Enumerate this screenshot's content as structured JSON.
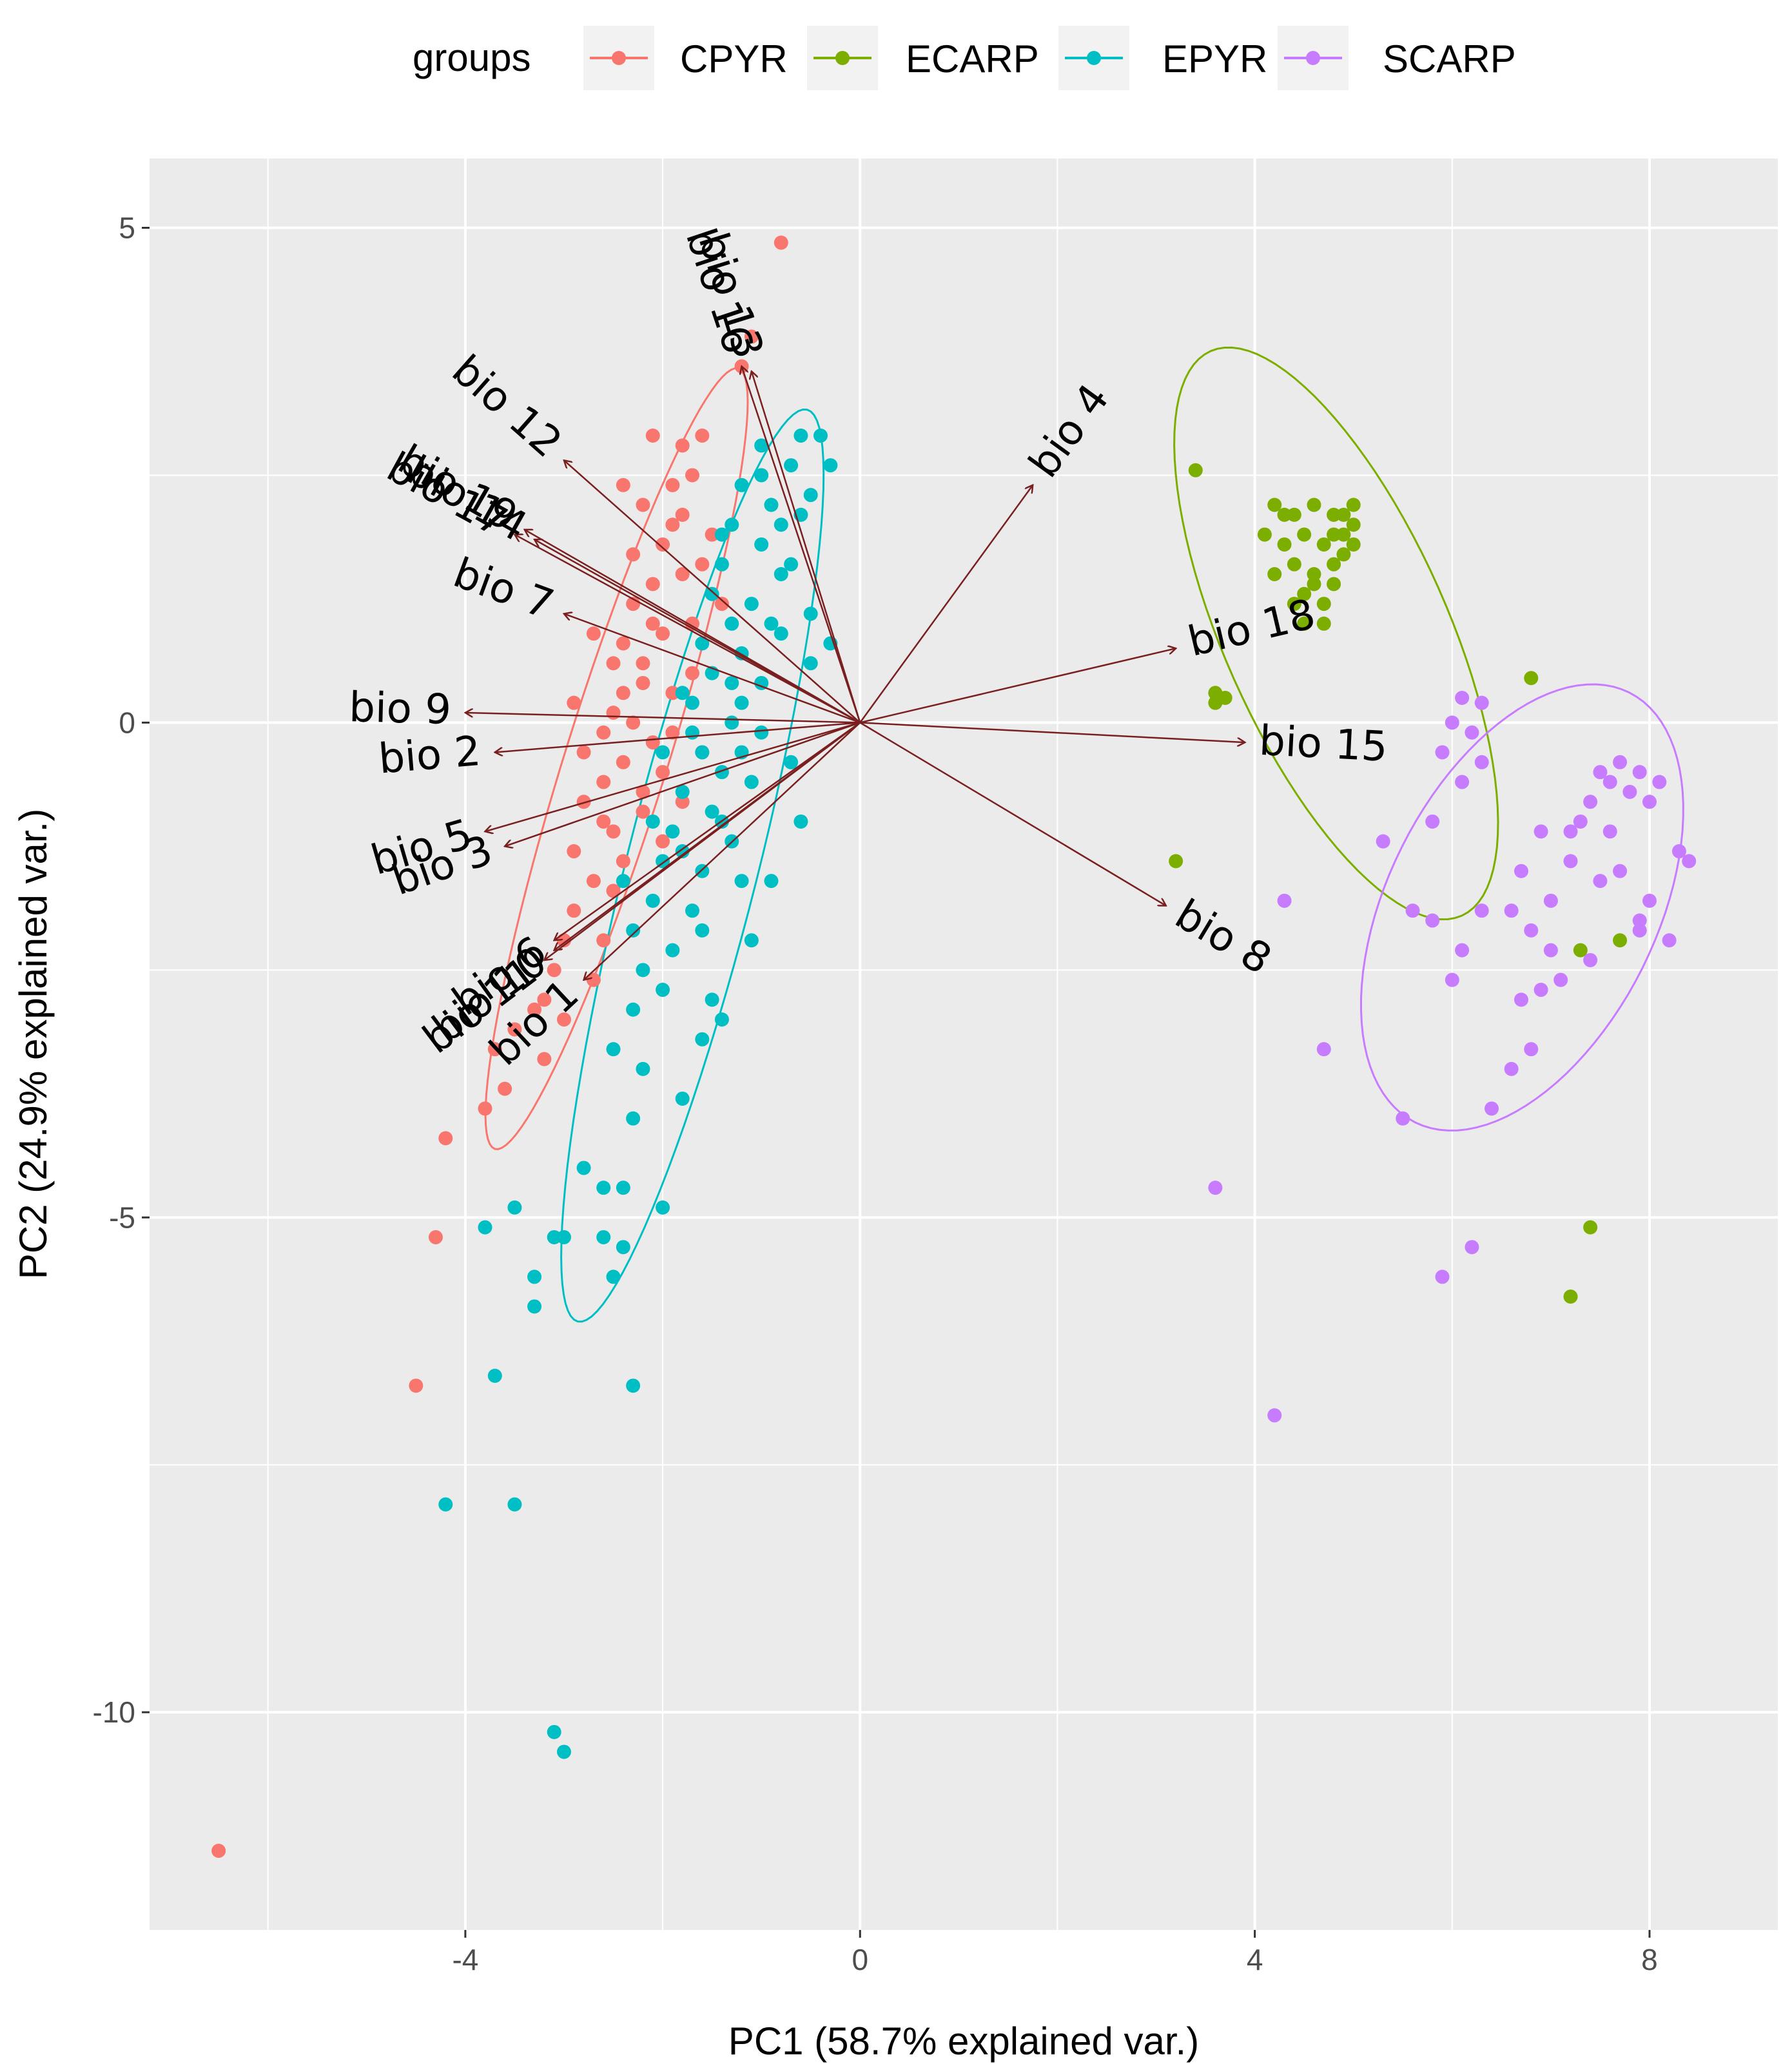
{
  "chart_data": {
    "type": "scatter",
    "title": "",
    "xlabel": "PC1 (58.7% explained var.)",
    "ylabel": "PC2 (24.9% explained var.)",
    "xlim": [
      -7.2,
      9.3
    ],
    "ylim": [
      -12.2,
      5.7
    ],
    "x_ticks": [
      -4,
      0,
      4,
      8
    ],
    "y_ticks": [
      -10,
      -5,
      0,
      5
    ],
    "grid": true,
    "legend": {
      "title": "groups",
      "position": "top"
    },
    "colors": {
      "CPYR": "#F8766D",
      "ECARP": "#7CAE00",
      "EPYR": "#00BFC4",
      "SCARP": "#C77CFF",
      "arrow": "#7a1f1f",
      "panel": "#ebebeb",
      "grid": "#ffffff"
    },
    "series": [
      {
        "name": "CPYR",
        "points": [
          [
            -0.8,
            4.85
          ],
          [
            -1.1,
            3.9
          ],
          [
            -1.2,
            3.6
          ],
          [
            -1.6,
            2.9
          ],
          [
            -1.8,
            2.8
          ],
          [
            -2.1,
            2.9
          ],
          [
            -1.7,
            2.5
          ],
          [
            -2.4,
            2.4
          ],
          [
            -2.2,
            2.2
          ],
          [
            -1.9,
            2.4
          ],
          [
            -2.0,
            1.8
          ],
          [
            -2.3,
            1.7
          ],
          [
            -2.1,
            1.4
          ],
          [
            -1.8,
            1.5
          ],
          [
            -1.7,
            1.0
          ],
          [
            -2.0,
            0.9
          ],
          [
            -2.2,
            0.6
          ],
          [
            -2.5,
            0.6
          ],
          [
            -2.4,
            0.3
          ],
          [
            -2.3,
            0.0
          ],
          [
            -2.6,
            -0.1
          ],
          [
            -2.1,
            -0.2
          ],
          [
            -2.4,
            -0.4
          ],
          [
            -2.0,
            -0.5
          ],
          [
            -2.6,
            -0.6
          ],
          [
            -2.8,
            -0.8
          ],
          [
            -2.2,
            -0.9
          ],
          [
            -2.5,
            -1.1
          ],
          [
            -2.9,
            -1.3
          ],
          [
            -2.7,
            -1.6
          ],
          [
            -2.5,
            -1.7
          ],
          [
            -2.9,
            -1.9
          ],
          [
            -3.0,
            -2.2
          ],
          [
            -3.1,
            -2.5
          ],
          [
            -2.7,
            -2.6
          ],
          [
            -3.2,
            -2.8
          ],
          [
            -3.3,
            -2.9
          ],
          [
            -3.0,
            -3.0
          ],
          [
            -3.5,
            -3.1
          ],
          [
            -3.7,
            -3.3
          ],
          [
            -3.2,
            -3.4
          ],
          [
            -3.8,
            -3.9
          ],
          [
            -4.2,
            -4.2
          ],
          [
            -3.6,
            -3.7
          ],
          [
            -4.3,
            -5.2
          ],
          [
            -4.5,
            -6.7
          ],
          [
            -6.5,
            -11.4
          ],
          [
            -1.5,
            1.9
          ],
          [
            -1.4,
            1.2
          ],
          [
            -1.9,
            0.3
          ],
          [
            -1.6,
            -0.3
          ],
          [
            -2.9,
            0.2
          ],
          [
            -2.7,
            0.9
          ],
          [
            -2.3,
            1.2
          ],
          [
            -1.9,
            2.0
          ],
          [
            -2.0,
            -1.2
          ],
          [
            -2.6,
            -2.2
          ],
          [
            -1.8,
            -0.8
          ],
          [
            -2.4,
            -1.4
          ],
          [
            -2.2,
            0.4
          ],
          [
            -1.7,
            0.5
          ],
          [
            -2.6,
            -1.0
          ],
          [
            -2.8,
            -0.3
          ],
          [
            -1.9,
            -0.1
          ],
          [
            -2.1,
            1.0
          ],
          [
            -2.4,
            0.8
          ],
          [
            -1.6,
            1.6
          ],
          [
            -1.8,
            2.1
          ],
          [
            -2.2,
            -0.7
          ],
          [
            -2.5,
            0.1
          ]
        ]
      },
      {
        "name": "ECARP",
        "points": [
          [
            3.4,
            2.55
          ],
          [
            4.2,
            2.2
          ],
          [
            4.4,
            2.1
          ],
          [
            4.6,
            2.2
          ],
          [
            4.8,
            2.1
          ],
          [
            5.0,
            2.2
          ],
          [
            4.5,
            1.9
          ],
          [
            4.7,
            1.8
          ],
          [
            4.9,
            1.9
          ],
          [
            5.0,
            2.0
          ],
          [
            4.3,
            1.8
          ],
          [
            4.1,
            1.9
          ],
          [
            4.4,
            1.6
          ],
          [
            4.6,
            1.5
          ],
          [
            4.8,
            1.6
          ],
          [
            4.9,
            1.7
          ],
          [
            4.5,
            1.3
          ],
          [
            4.7,
            1.2
          ],
          [
            4.6,
            1.4
          ],
          [
            4.8,
            1.4
          ],
          [
            4.4,
            1.2
          ],
          [
            4.2,
            1.5
          ],
          [
            5.0,
            1.8
          ],
          [
            4.7,
            1.0
          ],
          [
            4.5,
            1.0
          ],
          [
            4.9,
            2.1
          ],
          [
            4.3,
            2.1
          ],
          [
            4.8,
            1.9
          ],
          [
            3.6,
            0.3
          ],
          [
            3.7,
            0.25
          ],
          [
            3.6,
            0.2
          ],
          [
            6.8,
            0.45
          ],
          [
            3.2,
            -1.4
          ],
          [
            7.3,
            -2.3
          ],
          [
            7.7,
            -2.2
          ],
          [
            7.4,
            -5.1
          ],
          [
            7.2,
            -5.8
          ]
        ]
      },
      {
        "name": "EPYR",
        "points": [
          [
            -0.6,
            2.9
          ],
          [
            -0.7,
            2.6
          ],
          [
            -1.0,
            2.5
          ],
          [
            -1.2,
            2.4
          ],
          [
            -0.9,
            2.2
          ],
          [
            -0.5,
            2.3
          ],
          [
            -0.6,
            2.1
          ],
          [
            -1.3,
            2.0
          ],
          [
            -1.0,
            1.8
          ],
          [
            -1.4,
            1.6
          ],
          [
            -0.8,
            1.5
          ],
          [
            -1.5,
            1.3
          ],
          [
            -1.1,
            1.2
          ],
          [
            -1.3,
            1.0
          ],
          [
            -0.8,
            0.9
          ],
          [
            -1.6,
            0.8
          ],
          [
            -1.2,
            0.7
          ],
          [
            -1.5,
            0.5
          ],
          [
            -1.0,
            0.4
          ],
          [
            -1.7,
            0.2
          ],
          [
            -1.3,
            0.0
          ],
          [
            -1.0,
            -0.1
          ],
          [
            -1.6,
            -0.3
          ],
          [
            -1.4,
            -0.5
          ],
          [
            -1.1,
            -0.6
          ],
          [
            -1.8,
            -0.7
          ],
          [
            -1.5,
            -0.9
          ],
          [
            -1.9,
            -1.1
          ],
          [
            -1.3,
            -1.2
          ],
          [
            -2.0,
            -1.4
          ],
          [
            -1.6,
            -1.5
          ],
          [
            -1.2,
            -1.6
          ],
          [
            -2.1,
            -1.8
          ],
          [
            -1.7,
            -1.9
          ],
          [
            -2.3,
            -2.1
          ],
          [
            -1.9,
            -2.3
          ],
          [
            -2.2,
            -2.5
          ],
          [
            -2.0,
            -2.7
          ],
          [
            -1.5,
            -2.8
          ],
          [
            -1.4,
            -3.0
          ],
          [
            -1.6,
            -3.2
          ],
          [
            -2.3,
            -2.9
          ],
          [
            -2.5,
            -3.3
          ],
          [
            -2.2,
            -3.5
          ],
          [
            -1.8,
            -3.8
          ],
          [
            -2.3,
            -4.0
          ],
          [
            -2.8,
            -4.5
          ],
          [
            -2.6,
            -4.7
          ],
          [
            -2.4,
            -4.7
          ],
          [
            -2.0,
            -4.9
          ],
          [
            -2.6,
            -5.2
          ],
          [
            -2.4,
            -5.3
          ],
          [
            -2.5,
            -5.6
          ],
          [
            -3.0,
            -5.2
          ],
          [
            -3.1,
            -5.2
          ],
          [
            -3.3,
            -5.6
          ],
          [
            -3.3,
            -5.9
          ],
          [
            -3.5,
            -4.9
          ],
          [
            -3.8,
            -5.1
          ],
          [
            -3.7,
            -6.6
          ],
          [
            -2.3,
            -6.7
          ],
          [
            -4.2,
            -7.9
          ],
          [
            -3.5,
            -7.9
          ],
          [
            -3.1,
            -10.2
          ],
          [
            -3.0,
            -10.4
          ],
          [
            -0.3,
            2.6
          ],
          [
            -0.4,
            2.9
          ],
          [
            -0.7,
            1.6
          ],
          [
            -0.9,
            1.0
          ],
          [
            -0.5,
            1.1
          ],
          [
            -1.2,
            0.2
          ],
          [
            -1.7,
            -0.1
          ],
          [
            -2.1,
            -1.0
          ],
          [
            -1.8,
            -1.3
          ],
          [
            -2.4,
            -1.6
          ],
          [
            -1.1,
            -2.2
          ],
          [
            -0.9,
            -1.6
          ],
          [
            -0.6,
            -1.0
          ],
          [
            -0.7,
            -0.4
          ],
          [
            -0.5,
            0.6
          ],
          [
            -0.3,
            0.8
          ],
          [
            -1.4,
            1.9
          ],
          [
            -1.0,
            2.8
          ],
          [
            -0.8,
            2.0
          ],
          [
            -1.3,
            0.4
          ],
          [
            -1.8,
            0.3
          ],
          [
            -2.0,
            -0.3
          ],
          [
            -1.4,
            -1.0
          ],
          [
            -1.6,
            -2.1
          ],
          [
            -1.2,
            -0.3
          ]
        ]
      },
      {
        "name": "SCARP",
        "points": [
          [
            6.1,
            0.25
          ],
          [
            6.3,
            0.2
          ],
          [
            6.0,
            0.0
          ],
          [
            6.2,
            -0.1
          ],
          [
            5.9,
            -0.3
          ],
          [
            6.3,
            -0.4
          ],
          [
            6.1,
            -0.6
          ],
          [
            5.8,
            -1.0
          ],
          [
            5.3,
            -1.2
          ],
          [
            7.5,
            -0.5
          ],
          [
            7.7,
            -0.4
          ],
          [
            7.9,
            -0.5
          ],
          [
            7.6,
            -0.6
          ],
          [
            7.4,
            -0.8
          ],
          [
            7.8,
            -0.7
          ],
          [
            7.3,
            -1.0
          ],
          [
            7.6,
            -1.1
          ],
          [
            8.0,
            -0.8
          ],
          [
            8.1,
            -0.6
          ],
          [
            7.2,
            -1.1
          ],
          [
            6.9,
            -1.1
          ],
          [
            6.7,
            -1.5
          ],
          [
            7.2,
            -1.4
          ],
          [
            7.5,
            -1.6
          ],
          [
            7.7,
            -1.5
          ],
          [
            8.3,
            -1.3
          ],
          [
            8.4,
            -1.4
          ],
          [
            8.0,
            -1.8
          ],
          [
            7.9,
            -2.0
          ],
          [
            8.2,
            -2.2
          ],
          [
            6.3,
            -1.9
          ],
          [
            6.6,
            -1.9
          ],
          [
            6.1,
            -2.3
          ],
          [
            6.8,
            -2.1
          ],
          [
            7.0,
            -2.3
          ],
          [
            7.4,
            -2.4
          ],
          [
            7.1,
            -2.6
          ],
          [
            6.0,
            -2.6
          ],
          [
            6.7,
            -2.8
          ],
          [
            6.9,
            -2.7
          ],
          [
            5.6,
            -1.9
          ],
          [
            5.8,
            -2.0
          ],
          [
            6.6,
            -3.5
          ],
          [
            6.8,
            -3.3
          ],
          [
            6.4,
            -3.9
          ],
          [
            5.5,
            -4.0
          ],
          [
            4.7,
            -3.3
          ],
          [
            4.3,
            -1.8
          ],
          [
            3.6,
            -4.7
          ],
          [
            6.2,
            -5.3
          ],
          [
            5.9,
            -5.6
          ],
          [
            4.2,
            -7.0
          ],
          [
            7.0,
            -1.8
          ],
          [
            7.9,
            -2.1
          ]
        ]
      }
    ],
    "loadings": [
      {
        "name": "bio 1",
        "x": -2.8,
        "y": -2.6
      },
      {
        "name": "bio 2",
        "x": -3.7,
        "y": -0.3
      },
      {
        "name": "bio 3",
        "x": -3.6,
        "y": -1.25
      },
      {
        "name": "bio 4",
        "x": 1.75,
        "y": 2.4
      },
      {
        "name": "bio 5",
        "x": -3.8,
        "y": -1.1
      },
      {
        "name": "bio 6",
        "x": -3.1,
        "y": -2.2
      },
      {
        "name": "bio 7",
        "x": -3.0,
        "y": 1.1
      },
      {
        "name": "bio 8",
        "x": 3.1,
        "y": -1.85
      },
      {
        "name": "bio 9",
        "x": -4.0,
        "y": 0.1
      },
      {
        "name": "bio 10",
        "x": -3.1,
        "y": -2.3
      },
      {
        "name": "bio 11",
        "x": -3.2,
        "y": -2.4
      },
      {
        "name": "bio 12",
        "x": -3.0,
        "y": 2.65
      },
      {
        "name": "bio 13",
        "x": -1.1,
        "y": 3.55
      },
      {
        "name": "bio 14",
        "x": -3.3,
        "y": 1.85
      },
      {
        "name": "bio 15",
        "x": 3.9,
        "y": -0.2
      },
      {
        "name": "bio 16",
        "x": -1.2,
        "y": 3.6
      },
      {
        "name": "bio 17",
        "x": -3.5,
        "y": 1.9
      },
      {
        "name": "bio 18",
        "x": 3.2,
        "y": 0.75
      },
      {
        "name": "bio 19",
        "x": -3.4,
        "y": 1.95
      }
    ]
  }
}
